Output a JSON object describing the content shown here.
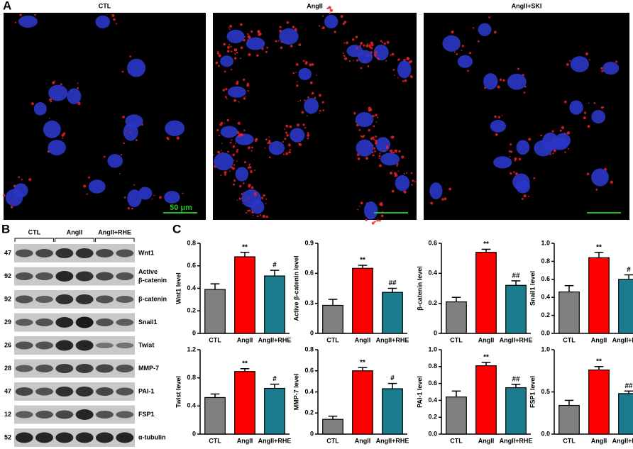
{
  "panel_a": {
    "label": "A",
    "titles": [
      "CTL",
      "AngII",
      "AngII+SKI"
    ],
    "scale_bar": "50 μm"
  },
  "panel_b": {
    "label": "B",
    "groups": [
      "CTL",
      "AngII",
      "AngII+RHE"
    ],
    "rows": [
      {
        "mw": 47,
        "label": "Wnt1"
      },
      {
        "mw": 92,
        "label": "Active",
        "label2": "β-catenin"
      },
      {
        "mw": 92,
        "label": "β-catenin"
      },
      {
        "mw": 29,
        "label": "Snail1"
      },
      {
        "mw": 26,
        "label": "Twist"
      },
      {
        "mw": 28,
        "label": "MMP-7"
      },
      {
        "mw": 47,
        "label": "PAI-1"
      },
      {
        "mw": 12,
        "label": "FSP1"
      },
      {
        "mw": 52,
        "label": "α-tubulin"
      }
    ]
  },
  "panel_c": {
    "label": "C"
  },
  "chart_data": [
    {
      "type": "bar",
      "ylabel": "Wnt1  level",
      "categories": [
        "CTL",
        "AngII",
        "AngII+RHE"
      ],
      "values": [
        0.39,
        0.68,
        0.51
      ],
      "errors": [
        0.05,
        0.04,
        0.05
      ],
      "annotations": [
        null,
        "**",
        "#"
      ],
      "colors": [
        "#808080",
        "#ff0000",
        "#1b7c8e"
      ],
      "ylim": [
        0,
        0.8
      ],
      "yticks": [
        0,
        0.2,
        0.4,
        0.6,
        0.8
      ]
    },
    {
      "type": "bar",
      "ylabel": "Active β-catenin level",
      "categories": [
        "CTL",
        "AngII",
        "AngII+RHE"
      ],
      "values": [
        0.28,
        0.65,
        0.41
      ],
      "errors": [
        0.06,
        0.03,
        0.04
      ],
      "annotations": [
        null,
        "**",
        "##"
      ],
      "colors": [
        "#808080",
        "#ff0000",
        "#1b7c8e"
      ],
      "ylim": [
        0,
        0.9
      ],
      "yticks": [
        0,
        0.3,
        0.6,
        0.9
      ]
    },
    {
      "type": "bar",
      "ylabel": "β-catenin level",
      "categories": [
        "CTL",
        "AngII",
        "AngII+RHE"
      ],
      "values": [
        0.21,
        0.54,
        0.32
      ],
      "errors": [
        0.03,
        0.02,
        0.03
      ],
      "annotations": [
        null,
        "**",
        "##"
      ],
      "colors": [
        "#808080",
        "#ff0000",
        "#1b7c8e"
      ],
      "ylim": [
        0,
        0.6
      ],
      "yticks": [
        0,
        0.2,
        0.4,
        0.6
      ]
    },
    {
      "type": "bar",
      "ylabel": "Snail1 level",
      "categories": [
        "CTL",
        "AngII",
        "AngII+RHE"
      ],
      "values": [
        0.46,
        0.84,
        0.6
      ],
      "errors": [
        0.07,
        0.06,
        0.05
      ],
      "annotations": [
        null,
        "**",
        "#"
      ],
      "colors": [
        "#808080",
        "#ff0000",
        "#1b7c8e"
      ],
      "ylim": [
        0,
        1.0
      ],
      "yticks": [
        {
          "value": 0,
          "label": "0.0"
        },
        0.2,
        0.4,
        0.6,
        0.8,
        {
          "value": 1,
          "label": "1.0"
        }
      ]
    },
    {
      "type": "bar",
      "ylabel": "Twist level",
      "categories": [
        "CTL",
        "AngII",
        "AngII+RHE"
      ],
      "values": [
        0.52,
        0.89,
        0.65
      ],
      "errors": [
        0.05,
        0.04,
        0.06
      ],
      "annotations": [
        null,
        "**",
        "#"
      ],
      "colors": [
        "#808080",
        "#ff0000",
        "#1b7c8e"
      ],
      "ylim": [
        0,
        1.2
      ],
      "yticks": [
        0,
        0.4,
        0.8,
        1.2
      ]
    },
    {
      "type": "bar",
      "ylabel": "MMP-7 level",
      "categories": [
        "CTL",
        "AngII",
        "AngII+RHE"
      ],
      "values": [
        0.14,
        0.6,
        0.43
      ],
      "errors": [
        0.03,
        0.03,
        0.05
      ],
      "annotations": [
        null,
        "**",
        "#"
      ],
      "colors": [
        "#808080",
        "#ff0000",
        "#1b7c8e"
      ],
      "ylim": [
        0,
        0.8
      ],
      "yticks": [
        0,
        0.2,
        0.4,
        0.6,
        0.8
      ]
    },
    {
      "type": "bar",
      "ylabel": "PAI-1 level",
      "categories": [
        "CTL",
        "AngII",
        "AngII+RHE"
      ],
      "values": [
        0.44,
        0.81,
        0.55
      ],
      "errors": [
        0.07,
        0.04,
        0.04
      ],
      "annotations": [
        null,
        "**",
        "##"
      ],
      "colors": [
        "#808080",
        "#ff0000",
        "#1b7c8e"
      ],
      "ylim": [
        0,
        1.0
      ],
      "yticks": [
        {
          "value": 0,
          "label": "0.0"
        },
        0.2,
        0.4,
        0.6,
        0.8,
        {
          "value": 1,
          "label": "1.0"
        }
      ]
    },
    {
      "type": "bar",
      "ylabel": "FSP1 level",
      "categories": [
        "CTL",
        "AngII",
        "AngII+RHE"
      ],
      "values": [
        0.34,
        0.76,
        0.48
      ],
      "errors": [
        0.06,
        0.04,
        0.03
      ],
      "annotations": [
        null,
        "**",
        "##"
      ],
      "colors": [
        "#808080",
        "#ff0000",
        "#1b7c8e"
      ],
      "ylim": [
        0,
        1.0
      ],
      "yticks": [
        {
          "value": 0,
          "label": "0.0"
        },
        {
          "value": 0.5,
          "label": "0.5"
        },
        {
          "value": 1,
          "label": "1.0"
        }
      ]
    }
  ]
}
